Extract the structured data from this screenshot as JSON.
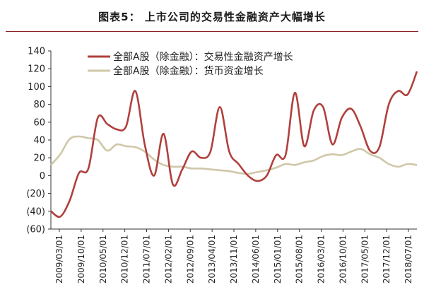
{
  "title": "图表5：  上市公司的交易性金融资产大幅增长",
  "chart_data": {
    "type": "line",
    "title": "图表5：  上市公司的交易性金融资产大幅增长",
    "xlabel": "",
    "ylabel": "",
    "ylim": [
      -60,
      140
    ],
    "yticks": [
      140,
      120,
      100,
      80,
      60,
      40,
      20,
      0,
      -20,
      -40,
      -60
    ],
    "ytick_labels": [
      "140",
      "120",
      "100",
      "80",
      "60",
      "40",
      "20",
      "0",
      "(20)",
      "(40)",
      "(60)"
    ],
    "xticks": [
      "2009/03/01",
      "2009/10/01",
      "2010/05/01",
      "2010/12/01",
      "2011/07/01",
      "2012/02/01",
      "2012/09/01",
      "2013/04/01",
      "2013/11/01",
      "2014/06/01",
      "2015/01/01",
      "2015/08/01",
      "2016/03/01",
      "2016/10/01",
      "2017/05/01",
      "2017/12/01",
      "2018/07/01"
    ],
    "grid": false,
    "legend_position": "top",
    "series": [
      {
        "name": "全部A股（除金融）：交易性金融资产增长",
        "color": "#b0403d",
        "values": [
          -40,
          -46,
          -28,
          3,
          8,
          65,
          58,
          52,
          55,
          95,
          35,
          0,
          47,
          -10,
          7,
          27,
          20,
          27,
          77,
          27,
          13,
          0,
          -6,
          0,
          23,
          23,
          93,
          33,
          73,
          77,
          35,
          65,
          75,
          55,
          28,
          32,
          80,
          95,
          91,
          117
        ]
      },
      {
        "name": "全部A股（除金融）：货币资金增长",
        "color": "#cfc7a8",
        "values": [
          12,
          24,
          41,
          44,
          42,
          40,
          28,
          35,
          33,
          32,
          27,
          18,
          12,
          10,
          10,
          8,
          8,
          7,
          6,
          5,
          3,
          2,
          4,
          6,
          9,
          13,
          12,
          15,
          17,
          22,
          24,
          23,
          27,
          30,
          24,
          20,
          13,
          10,
          13,
          12
        ]
      }
    ]
  }
}
